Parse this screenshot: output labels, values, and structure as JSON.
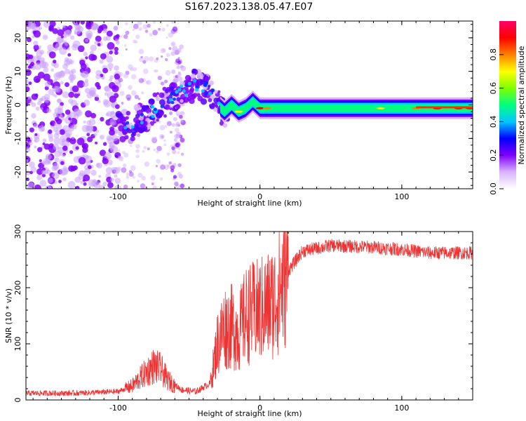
{
  "title": "S167.2023.138.05.47.E07",
  "chart_data": [
    {
      "type": "heatmap",
      "xlabel": "Height of straight line (km)",
      "ylabel": "Frequency (Hz)",
      "xlim": [
        -165,
        150
      ],
      "ylim": [
        -25,
        25
      ],
      "xticks": [
        -100,
        0,
        100
      ],
      "xtick_labels": [
        "-100",
        "0",
        "100"
      ],
      "yticks": [
        -20,
        -10,
        0,
        10,
        20
      ],
      "ytick_labels": [
        "-20",
        "-10",
        "0",
        "10",
        "20"
      ],
      "colorbar": {
        "label": "Normalized spectral amplitude",
        "range": [
          0,
          1
        ],
        "ticks": [
          0,
          0.2,
          0.4,
          0.6,
          0.8
        ],
        "tick_labels": [
          "0.0",
          "0.2",
          "0.4",
          "0.6",
          "0.8"
        ],
        "colormap": [
          "#ffffff",
          "#d9b3ff",
          "#7f00ff",
          "#0000ff",
          "#00c8ff",
          "#00ff80",
          "#80ff00",
          "#ffff00",
          "#ff8000",
          "#ff0000",
          "#ff0066"
        ]
      },
      "ridge": [
        {
          "x": -90,
          "freq": -6
        },
        {
          "x": -80,
          "freq": -3
        },
        {
          "x": -70,
          "freq": 0
        },
        {
          "x": -60,
          "freq": 3
        },
        {
          "x": -45,
          "freq": 6
        },
        {
          "x": -35,
          "freq": 4
        },
        {
          "x": -30,
          "freq": 0
        },
        {
          "x": -25,
          "freq": -2
        },
        {
          "x": -20,
          "freq": 0
        },
        {
          "x": -15,
          "freq": -2
        },
        {
          "x": -10,
          "freq": -1
        },
        {
          "x": -5,
          "freq": 1
        },
        {
          "x": 0,
          "freq": -1
        },
        {
          "x": 25,
          "freq": -1
        },
        {
          "x": 100,
          "freq": -1
        },
        {
          "x": 150,
          "freq": -1
        }
      ],
      "grid": false
    },
    {
      "type": "line",
      "xlabel": "Height of straight line (km)",
      "ylabel": "SNR (10 * v/v)",
      "xlim": [
        -165,
        150
      ],
      "ylim": [
        0,
        300
      ],
      "xticks": [
        -100,
        0,
        100
      ],
      "xtick_labels": [
        "-100",
        "0",
        "100"
      ],
      "yticks": [
        0,
        100,
        200,
        300
      ],
      "ytick_labels": [
        "0",
        "100",
        "200",
        "300"
      ],
      "color": "#ee3333",
      "envelope": [
        {
          "x": -165,
          "y": 12
        },
        {
          "x": -130,
          "y": 12
        },
        {
          "x": -100,
          "y": 15
        },
        {
          "x": -90,
          "y": 25
        },
        {
          "x": -80,
          "y": 50
        },
        {
          "x": -75,
          "y": 60
        },
        {
          "x": -70,
          "y": 55
        },
        {
          "x": -65,
          "y": 35
        },
        {
          "x": -55,
          "y": 18
        },
        {
          "x": -45,
          "y": 15
        },
        {
          "x": -35,
          "y": 30
        },
        {
          "x": -30,
          "y": 100
        },
        {
          "x": -25,
          "y": 130
        },
        {
          "x": -20,
          "y": 130
        },
        {
          "x": -15,
          "y": 120
        },
        {
          "x": -10,
          "y": 150
        },
        {
          "x": 0,
          "y": 160
        },
        {
          "x": 10,
          "y": 175
        },
        {
          "x": 20,
          "y": 230
        },
        {
          "x": 30,
          "y": 265
        },
        {
          "x": 50,
          "y": 275
        },
        {
          "x": 80,
          "y": 272
        },
        {
          "x": 100,
          "y": 268
        },
        {
          "x": 120,
          "y": 262
        },
        {
          "x": 150,
          "y": 262
        }
      ],
      "grid": false
    }
  ]
}
